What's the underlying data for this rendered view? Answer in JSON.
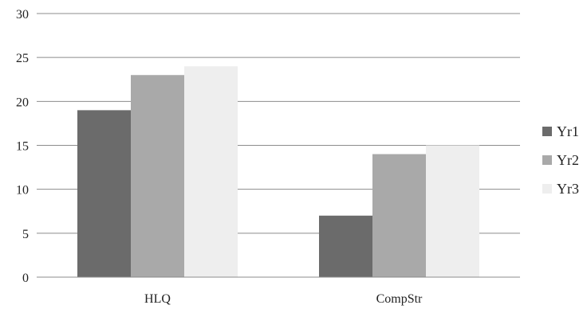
{
  "chart_data": {
    "type": "bar",
    "title": "",
    "xlabel": "",
    "ylabel": "",
    "categories": [
      "HLQ",
      "CompStr"
    ],
    "series": [
      {
        "name": "Yr1",
        "values": [
          19,
          7
        ],
        "color": "#6b6b6b"
      },
      {
        "name": "Yr2",
        "values": [
          23,
          14
        ],
        "color": "#a9a9a9"
      },
      {
        "name": "Yr3",
        "values": [
          24,
          15
        ],
        "color": "#eeeeee"
      }
    ],
    "ylim": [
      0,
      30
    ],
    "yticks": [
      0,
      5,
      10,
      15,
      20,
      25,
      30
    ],
    "grid": true,
    "legend_position": "right"
  }
}
